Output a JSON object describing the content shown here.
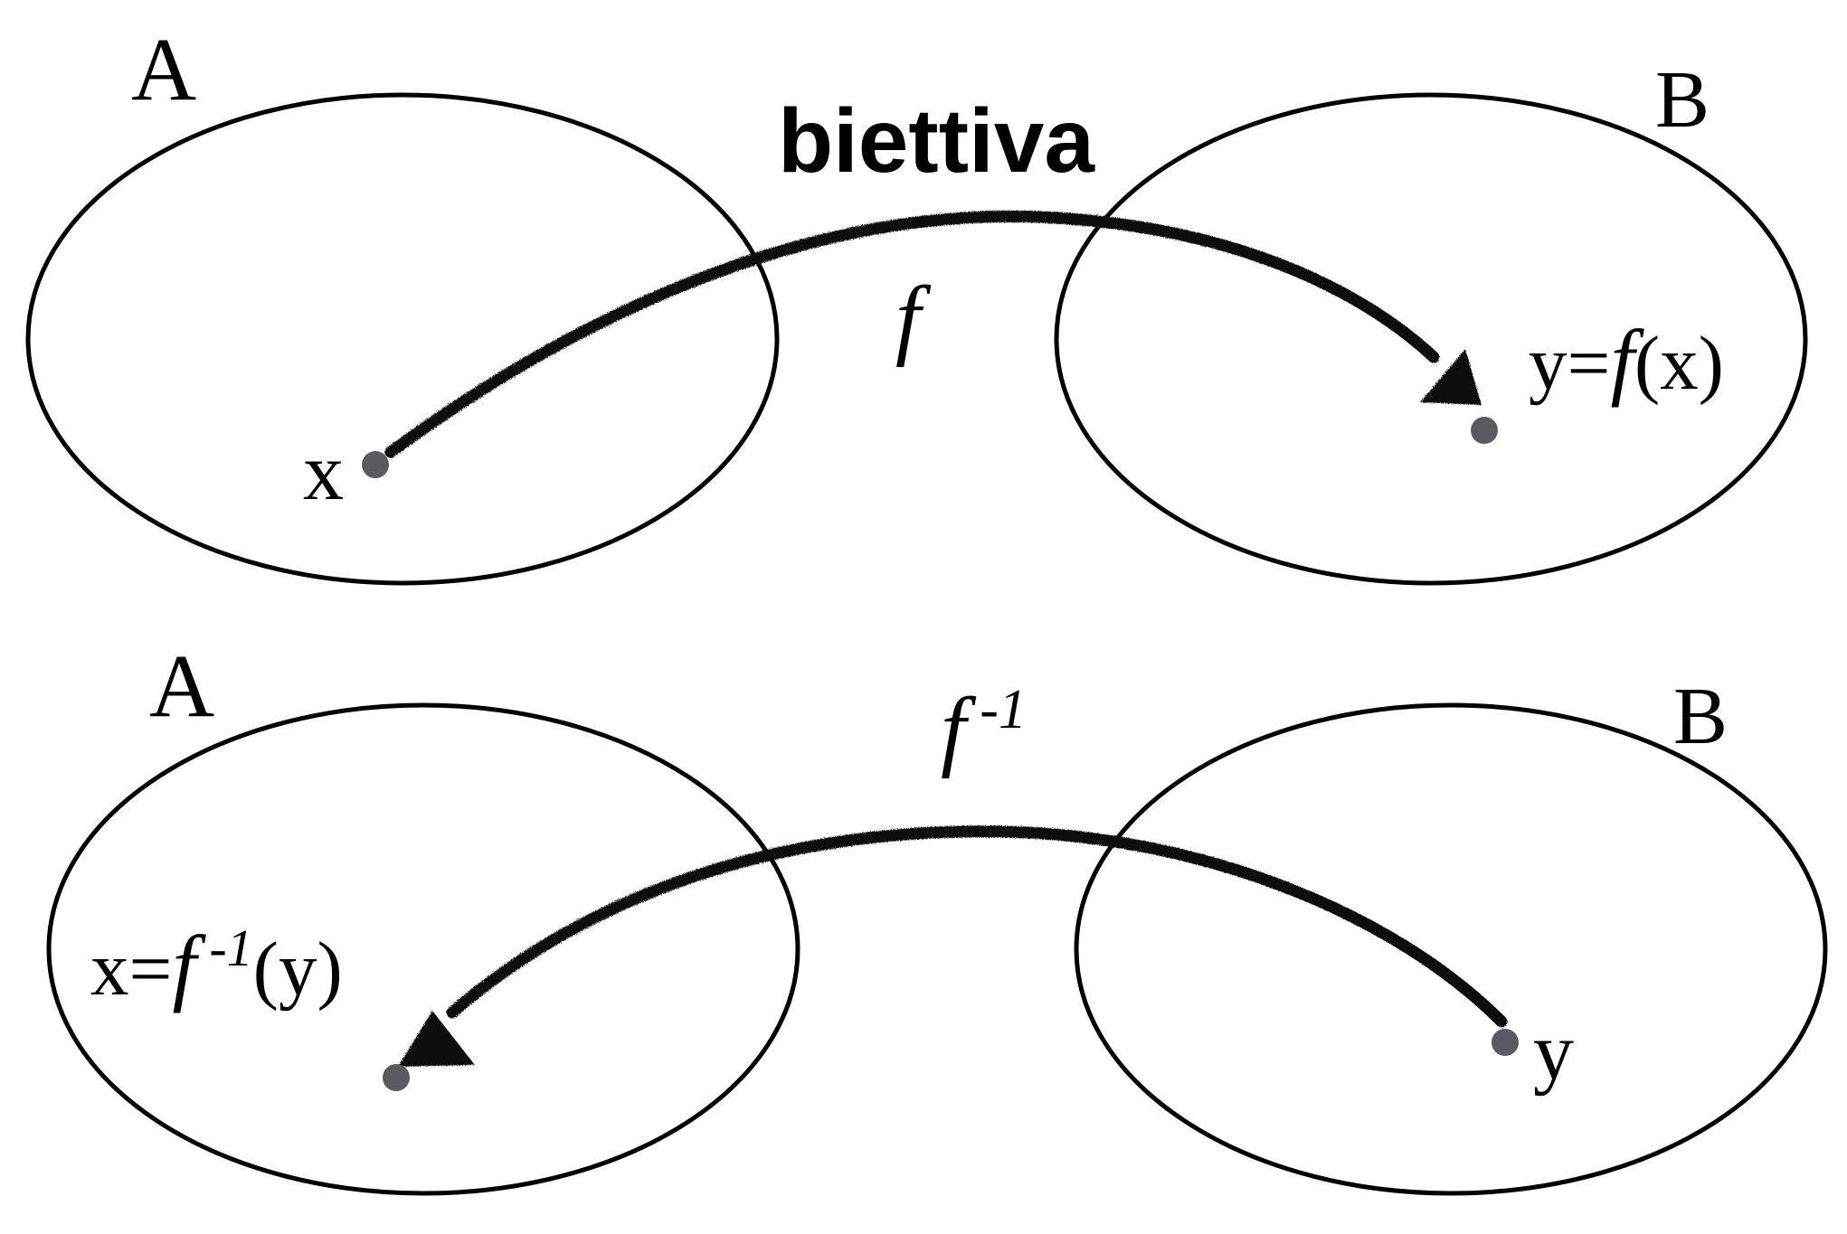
{
  "title": "biettiva",
  "top_diagram": {
    "domain_label": "A",
    "codomain_label": "B",
    "function_label": "f",
    "element_label": "x",
    "image_label": {
      "prefix": "y=",
      "func": "f",
      "arg": "(x)"
    }
  },
  "bottom_diagram": {
    "domain_label": "A",
    "codomain_label": "B",
    "function_label": {
      "func": "f",
      "exponent": " -1"
    },
    "element_label": "y",
    "preimage_label": {
      "prefix": "x=",
      "func": "f",
      "exponent": " -1",
      "arg": "(y)"
    }
  },
  "colors": {
    "stroke": "#000000",
    "arrow": "#111111",
    "point": "#5a5a60",
    "background": "#ffffff"
  }
}
